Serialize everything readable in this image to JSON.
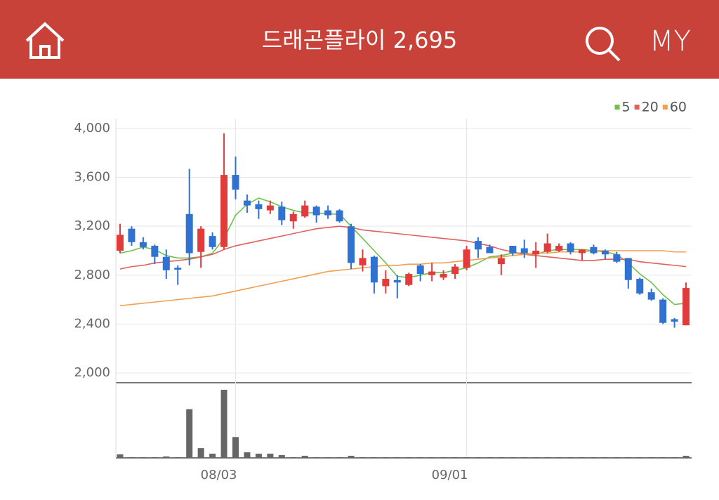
{
  "header": {
    "title": "드래곤플라이 2,695",
    "my": "MY"
  },
  "chart_data": {
    "type": "candlestick",
    "categories": [
      null,
      null,
      null,
      null,
      null,
      null,
      null,
      null,
      null,
      null,
      "08/03",
      null,
      null,
      null,
      null,
      null,
      null,
      null,
      null,
      null,
      null,
      null,
      null,
      null,
      null,
      null,
      null,
      null,
      null,
      null,
      "09/01",
      null,
      null,
      null,
      null,
      null,
      null,
      null,
      null,
      null,
      null,
      null,
      null,
      null,
      null,
      null,
      null,
      null,
      null,
      null
    ],
    "open": [
      3000,
      3180,
      3070,
      3040,
      2950,
      2860,
      3300,
      2990,
      3120,
      3030,
      3620,
      3410,
      3380,
      3330,
      3360,
      3240,
      3280,
      3360,
      3330,
      3330,
      3200,
      2880,
      2950,
      2710,
      2760,
      2720,
      2880,
      2800,
      2780,
      2810,
      2860,
      3080,
      3030,
      2890,
      3040,
      3020,
      2970,
      2990,
      3000,
      3060,
      2980,
      3030,
      3000,
      2970,
      2940,
      2770,
      2660,
      2600,
      2440,
      2390
    ],
    "high": [
      3220,
      3200,
      3110,
      3050,
      3010,
      2880,
      3670,
      3200,
      3150,
      3960,
      3770,
      3460,
      3410,
      3410,
      3400,
      3320,
      3410,
      3370,
      3370,
      3340,
      3220,
      3010,
      2960,
      2840,
      2800,
      2820,
      2890,
      2900,
      2840,
      2890,
      3040,
      3110,
      3050,
      2970,
      3040,
      3090,
      3070,
      3140,
      3060,
      3070,
      3010,
      3050,
      3010,
      2990,
      2940,
      2780,
      2690,
      2610,
      2450,
      2740
    ],
    "low": [
      2980,
      3040,
      3010,
      2890,
      2770,
      2720,
      2880,
      2860,
      3010,
      3010,
      3420,
      3310,
      3260,
      3300,
      3210,
      3180,
      3270,
      3230,
      3260,
      3230,
      2850,
      2830,
      2650,
      2650,
      2610,
      2710,
      2750,
      2750,
      2760,
      2770,
      2840,
      2940,
      2980,
      2800,
      2960,
      2940,
      2860,
      2980,
      2990,
      2970,
      2920,
      2970,
      2930,
      2900,
      2690,
      2640,
      2590,
      2400,
      2370,
      2390
    ],
    "close": [
      3130,
      3070,
      3030,
      2950,
      2840,
      2845,
      2980,
      3180,
      3030,
      3620,
      3500,
      3370,
      3340,
      3370,
      3250,
      3300,
      3370,
      3290,
      3290,
      3240,
      2900,
      2940,
      2740,
      2770,
      2740,
      2810,
      2810,
      2830,
      2810,
      2870,
      3010,
      3010,
      2980,
      2940,
      2980,
      2980,
      3000,
      3060,
      3040,
      2990,
      3010,
      2980,
      2970,
      2910,
      2760,
      2650,
      2600,
      2410,
      2420,
      2695
    ],
    "up_color": "#e23b3b",
    "down_color": "#2f72d2",
    "ylim": [
      1920,
      4080
    ],
    "yticks": [
      {
        "value": 2000,
        "label": "2,000"
      },
      {
        "value": 2400,
        "label": "2,400"
      },
      {
        "value": 2800,
        "label": "2,800"
      },
      {
        "value": 3200,
        "label": "3,200"
      },
      {
        "value": 3600,
        "label": "3,600"
      },
      {
        "value": 4000,
        "label": "4,000"
      }
    ],
    "grid": true,
    "legend": "top-right",
    "series": [
      {
        "name": "5",
        "color": "#6cc24a",
        "values": [
          2980,
          3000,
          3030,
          3010,
          2960,
          2940,
          2940,
          2950,
          2980,
          3100,
          3290,
          3380,
          3430,
          3400,
          3360,
          3330,
          3310,
          3310,
          3300,
          3300,
          3200,
          3100,
          3000,
          2900,
          2790,
          2780,
          2800,
          2820,
          2820,
          2840,
          2860,
          2900,
          2950,
          2960,
          2980,
          2980,
          2970,
          3000,
          3010,
          3010,
          3010,
          3000,
          2990,
          2970,
          2900,
          2810,
          2740,
          2640,
          2560,
          2570
        ]
      },
      {
        "name": "20",
        "color": "#e06060",
        "values": [
          2850,
          2870,
          2880,
          2900,
          2910,
          2920,
          2930,
          2950,
          2970,
          3010,
          3040,
          3060,
          3080,
          3100,
          3120,
          3140,
          3160,
          3180,
          3190,
          3200,
          3190,
          3170,
          3160,
          3150,
          3140,
          3130,
          3120,
          3110,
          3100,
          3090,
          3080,
          3060,
          3040,
          3010,
          2990,
          2970,
          2960,
          2950,
          2940,
          2930,
          2920,
          2920,
          2930,
          2930,
          2930,
          2910,
          2900,
          2890,
          2880,
          2870
        ]
      },
      {
        "name": "60",
        "color": "#f0a050",
        "values": [
          2550,
          2560,
          2570,
          2580,
          2590,
          2600,
          2610,
          2620,
          2630,
          2650,
          2670,
          2690,
          2710,
          2730,
          2750,
          2770,
          2790,
          2810,
          2830,
          2840,
          2850,
          2860,
          2870,
          2880,
          2880,
          2890,
          2890,
          2900,
          2900,
          2910,
          2920,
          2930,
          2940,
          2950,
          2960,
          2970,
          2980,
          2980,
          2990,
          2990,
          2990,
          3000,
          3000,
          3000,
          3000,
          3000,
          3000,
          3000,
          2990,
          2990
        ]
      }
    ],
    "volume": {
      "color": "#666666",
      "values": [
        5,
        1,
        1,
        1,
        2,
        1,
        70,
        14,
        6,
        98,
        30,
        8,
        6,
        6,
        4,
        1,
        3,
        1,
        1,
        1,
        3,
        1,
        1,
        1,
        1,
        1,
        1,
        1,
        1,
        1,
        1,
        1,
        1,
        1,
        1,
        1,
        1,
        1,
        1,
        1,
        1,
        1,
        1,
        1,
        1,
        1,
        1,
        1,
        1,
        3
      ]
    }
  }
}
